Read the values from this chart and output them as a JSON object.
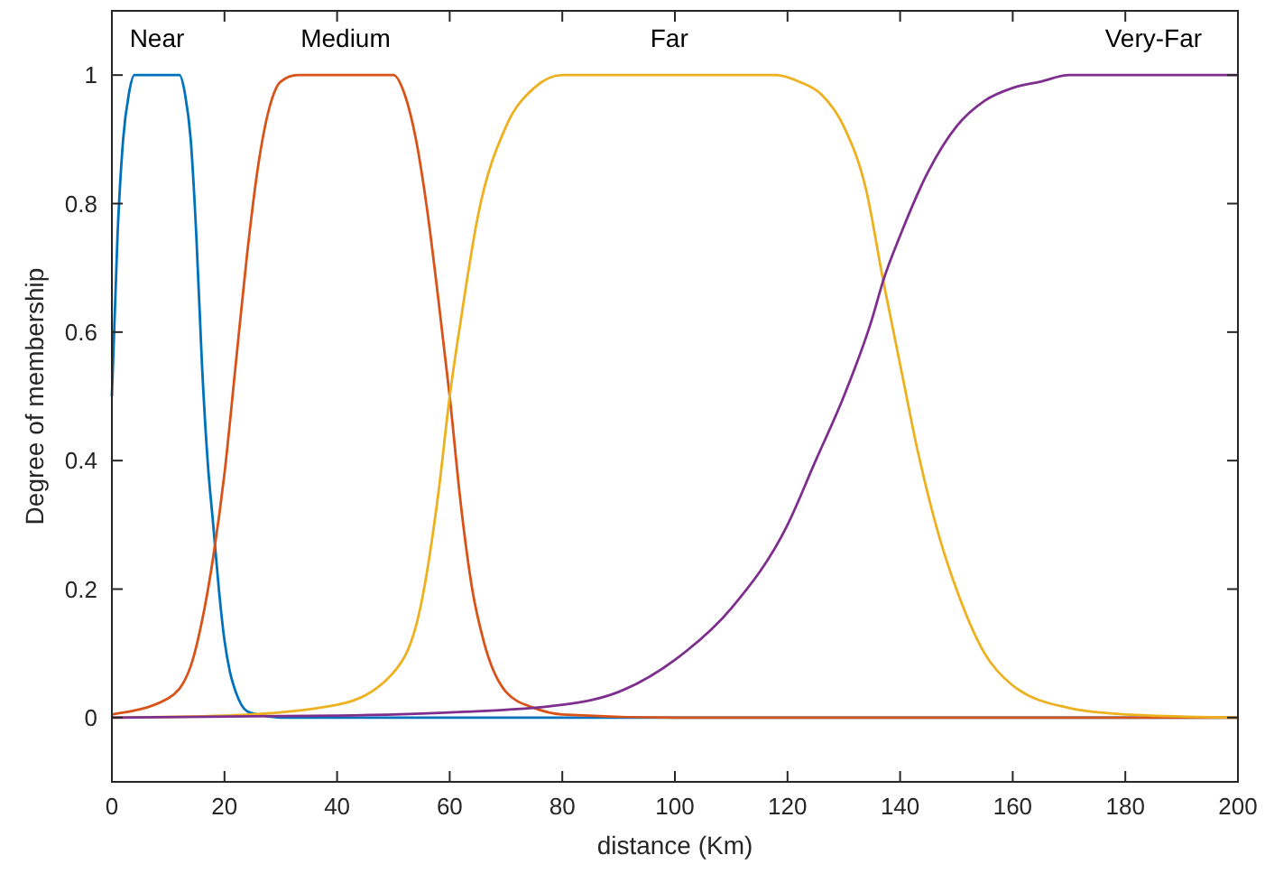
{
  "chart_data": {
    "type": "line",
    "xlabel": "distance (Km)",
    "ylabel": "Degree of membership",
    "xlim": [
      0,
      200
    ],
    "ylim": [
      -0.1,
      1.1
    ],
    "xticks": [
      0,
      20,
      40,
      60,
      80,
      100,
      120,
      140,
      160,
      180,
      200
    ],
    "yticks": [
      0,
      0.2,
      0.4,
      0.6,
      0.8,
      1
    ],
    "grid": false,
    "marker": "none",
    "line_style": "solid",
    "series": [
      {
        "name": "Near",
        "color": "#0072bd",
        "x": [
          0,
          1,
          2,
          3,
          4,
          12,
          13,
          14,
          15,
          16,
          17,
          18,
          19,
          20,
          21,
          22,
          24,
          27,
          30,
          200
        ],
        "values": [
          0.5,
          0.75,
          0.9,
          0.97,
          1,
          1,
          0.97,
          0.9,
          0.75,
          0.55,
          0.4,
          0.3,
          0.2,
          0.12,
          0.07,
          0.04,
          0.01,
          0.003,
          0,
          0
        ]
      },
      {
        "name": "Medium",
        "color": "#d95319",
        "x": [
          0,
          10,
          14,
          16,
          18,
          20,
          22,
          24,
          26,
          28,
          30,
          33,
          50,
          52,
          54,
          56,
          58,
          60,
          62,
          64,
          66,
          70,
          75,
          80,
          100,
          200
        ],
        "values": [
          0.005,
          0.03,
          0.08,
          0.15,
          0.25,
          0.38,
          0.55,
          0.72,
          0.86,
          0.95,
          0.99,
          1,
          1,
          0.97,
          0.9,
          0.79,
          0.65,
          0.5,
          0.33,
          0.2,
          0.12,
          0.04,
          0.015,
          0.005,
          0,
          0
        ]
      },
      {
        "name": "Far",
        "color": "#edb120",
        "x": [
          0,
          20,
          40,
          50,
          55,
          58,
          60,
          62,
          65,
          70,
          75,
          80,
          118,
          122,
          126,
          130,
          134,
          137,
          140,
          143,
          147,
          150,
          155,
          160,
          170,
          180,
          200
        ],
        "values": [
          0,
          0.003,
          0.02,
          0.07,
          0.18,
          0.35,
          0.5,
          0.62,
          0.78,
          0.92,
          0.98,
          1,
          1,
          0.99,
          0.97,
          0.92,
          0.82,
          0.68,
          0.55,
          0.42,
          0.28,
          0.2,
          0.1,
          0.05,
          0.015,
          0.005,
          0
        ]
      },
      {
        "name": "Very-Far",
        "color": "#7e2f8e",
        "x": [
          0,
          40,
          60,
          80,
          90,
          100,
          110,
          120,
          125,
          130,
          135,
          137,
          140,
          145,
          150,
          155,
          160,
          165,
          170,
          200
        ],
        "values": [
          0,
          0.003,
          0.008,
          0.02,
          0.04,
          0.09,
          0.17,
          0.3,
          0.4,
          0.5,
          0.62,
          0.68,
          0.75,
          0.85,
          0.92,
          0.96,
          0.98,
          0.99,
          1,
          1
        ]
      }
    ]
  }
}
